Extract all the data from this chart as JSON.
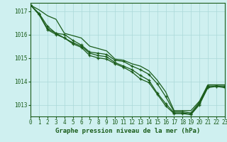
{
  "title": "Graphe pression niveau de la mer (hPa)",
  "bg_color": "#cff0f0",
  "plot_bg_color": "#cff0f0",
  "grid_color": "#aad8d8",
  "line_color": "#1a5c1a",
  "xlim": [
    0,
    23
  ],
  "ylim": [
    1012.5,
    1017.35
  ],
  "yticks": [
    1013,
    1014,
    1015,
    1016,
    1017
  ],
  "xticks": [
    0,
    1,
    2,
    3,
    4,
    5,
    6,
    7,
    8,
    9,
    10,
    11,
    12,
    13,
    14,
    15,
    16,
    17,
    18,
    19,
    20,
    21,
    22,
    23
  ],
  "series": [
    [
      1017.25,
      1017.05,
      1016.8,
      1016.65,
      1016.05,
      1015.95,
      1015.85,
      1015.5,
      1015.4,
      1015.3,
      1014.95,
      1014.9,
      1014.75,
      1014.65,
      1014.45,
      1014.05,
      1013.55,
      1012.75,
      1012.75,
      1012.75,
      1013.15,
      1013.85,
      1013.85,
      1013.85
    ],
    [
      1017.25,
      1016.9,
      1016.35,
      1016.05,
      1016.0,
      1015.75,
      1015.55,
      1015.25,
      1015.2,
      1015.15,
      1014.9,
      1014.85,
      1014.65,
      1014.5,
      1014.3,
      1013.9,
      1013.35,
      1012.7,
      1012.7,
      1012.65,
      1013.1,
      1013.8,
      1013.8,
      1013.8
    ],
    [
      1017.25,
      1016.85,
      1016.25,
      1016.05,
      1015.85,
      1015.65,
      1015.5,
      1015.2,
      1015.1,
      1015.05,
      1014.8,
      1014.65,
      1014.5,
      1014.25,
      1014.05,
      1013.5,
      1013.05,
      1012.65,
      1012.65,
      1012.6,
      1013.05,
      1013.75,
      1013.8,
      1013.75
    ],
    [
      1017.25,
      1016.85,
      1016.2,
      1016.0,
      1015.85,
      1015.6,
      1015.45,
      1015.1,
      1015.0,
      1014.95,
      1014.75,
      1014.6,
      1014.4,
      1014.1,
      1013.95,
      1013.45,
      1012.95,
      1012.62,
      1012.62,
      1012.58,
      1013.0,
      1013.73,
      1013.78,
      1013.73
    ]
  ],
  "tick_fontsize": 5.5,
  "title_fontsize": 6.5
}
